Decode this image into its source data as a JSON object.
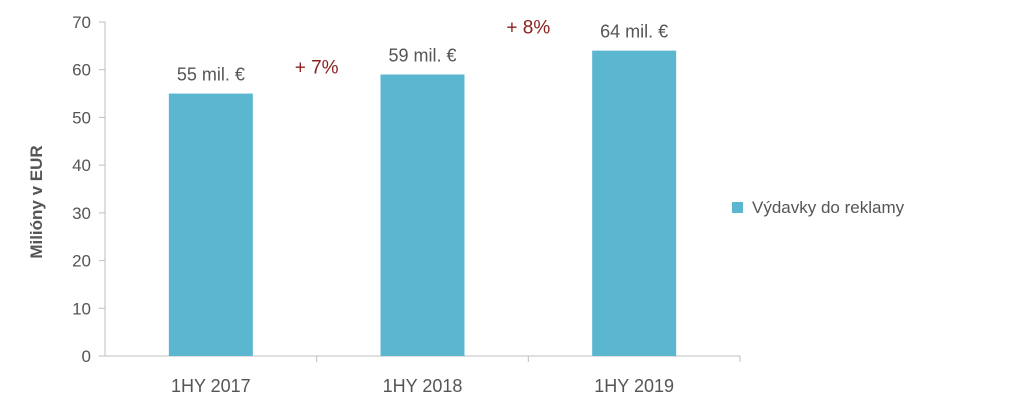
{
  "chart_data": {
    "type": "bar",
    "categories": [
      "1HY 2017",
      "1HY 2018",
      "1HY 2019"
    ],
    "series": [
      {
        "name": "Výdavky do reklamy",
        "values": [
          55,
          59,
          64
        ],
        "color": "#5bb7d0"
      }
    ],
    "value_labels": [
      "55 mil. €",
      "59 mil. €",
      "64 mil. €"
    ],
    "annotations": [
      "+ 7%",
      "+ 8%"
    ],
    "annotation_color": "#8b2020",
    "title": "",
    "xlabel": "",
    "ylabel": "Milióny v EUR",
    "ylim": [
      0,
      70
    ],
    "yticks": [
      0,
      10,
      20,
      30,
      40,
      50,
      60,
      70
    ],
    "grid": false,
    "legend_position": "right"
  }
}
